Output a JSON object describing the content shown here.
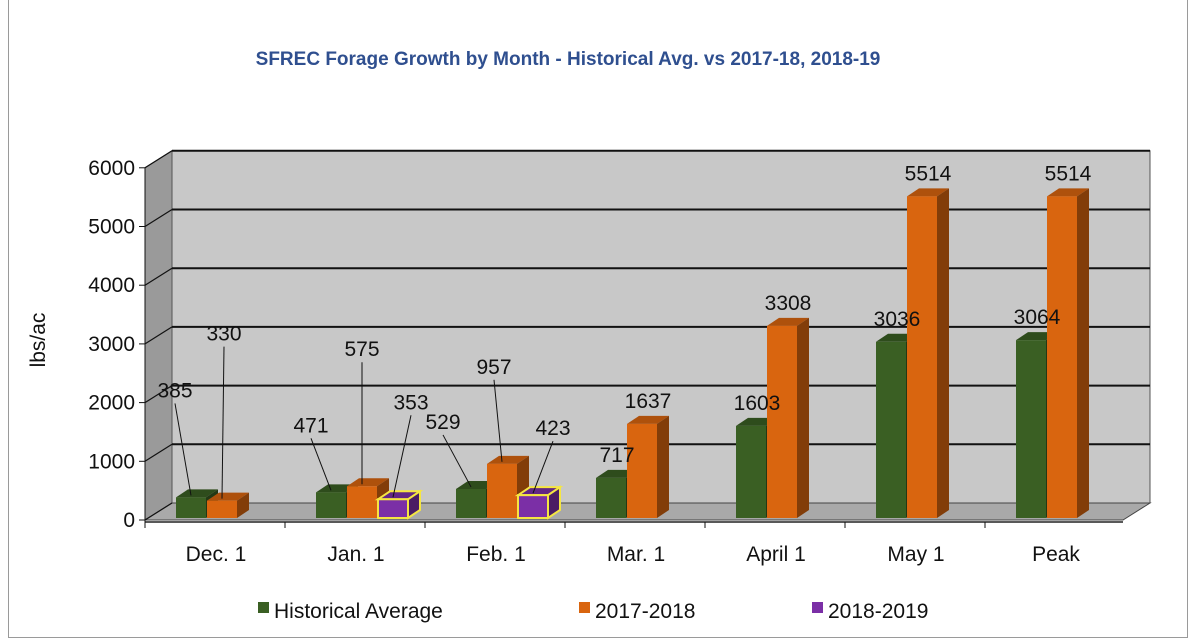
{
  "chart_data": {
    "type": "bar",
    "title": "SFREC Forage Growth by Month - Historical Avg. vs 2017-18, 2018-19",
    "xlabel": "",
    "ylabel": "lbs/ac",
    "ylim": [
      0,
      6000
    ],
    "yticks": [
      "0",
      "1000",
      "2000",
      "3000",
      "4000",
      "5000",
      "6000"
    ],
    "categories": [
      "Dec. 1",
      "Jan. 1",
      "Feb. 1",
      "Mar. 1",
      "April 1",
      "May 1",
      "Peak"
    ],
    "series": [
      {
        "name": "Historical Average",
        "color": "#3a5f23",
        "values": [
          385,
          471,
          529,
          717,
          1603,
          3036,
          3064
        ]
      },
      {
        "name": "2017-2018",
        "color": "#d9650f",
        "values": [
          330,
          575,
          957,
          1637,
          3308,
          5514,
          5514
        ]
      },
      {
        "name": "2018-2019",
        "color": "#7b2fa6",
        "values": [
          null,
          353,
          423,
          null,
          null,
          null,
          null
        ]
      }
    ],
    "grid": true,
    "legend": "bottom"
  }
}
